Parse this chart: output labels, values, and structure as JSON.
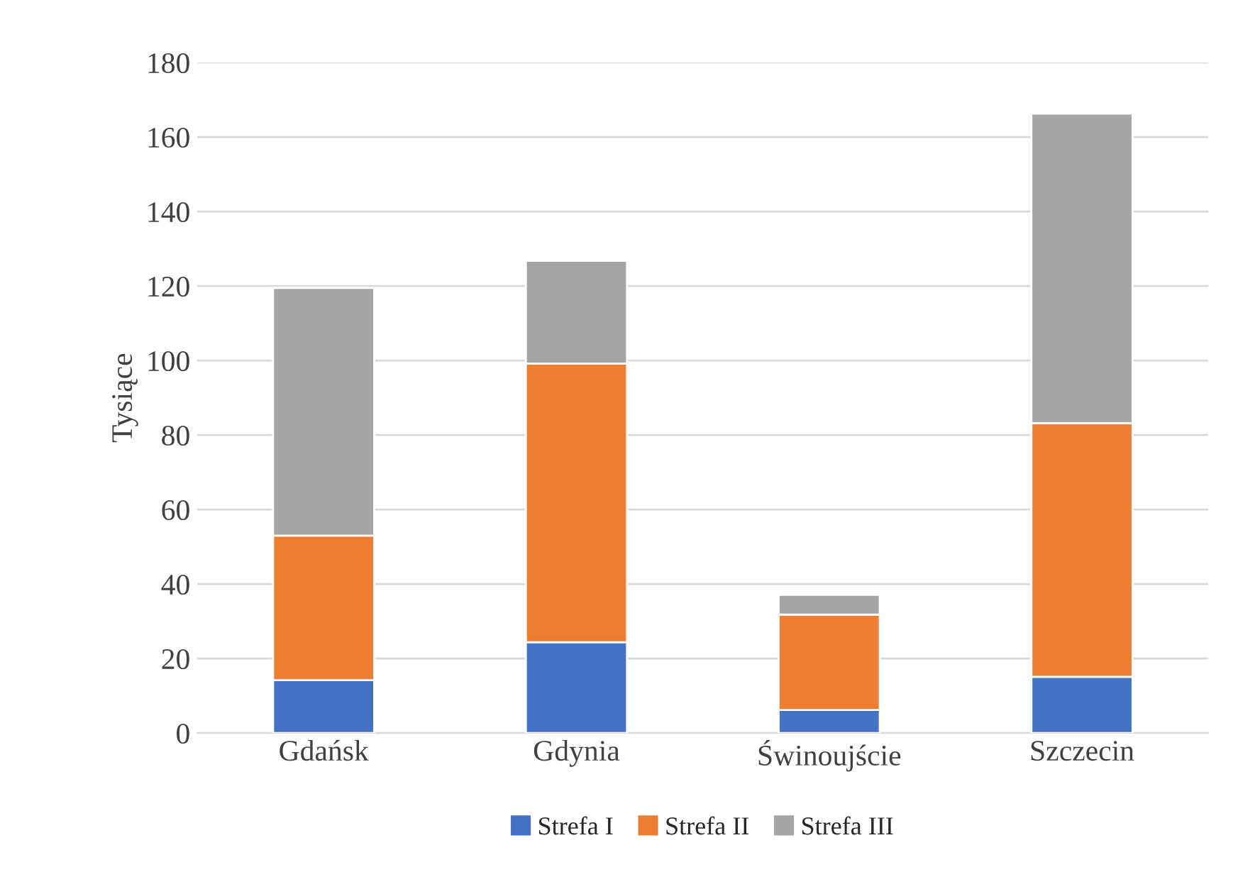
{
  "chart_data": {
    "type": "bar",
    "stacked": true,
    "ylabel": "Tysiące",
    "categories": [
      "Gdańsk",
      "Gdynia",
      "Świnoujście",
      "Szczecin"
    ],
    "series": [
      {
        "name": "Strefa I",
        "color": "#4472c4",
        "values": [
          14.2,
          24.4,
          6.2,
          15.1
        ]
      },
      {
        "name": "Strefa II",
        "color": "#ed7d31",
        "values": [
          38.8,
          74.8,
          25.6,
          68.1
        ]
      },
      {
        "name": "Strefa III",
        "color": "#a5a5a5",
        "values": [
          66.5,
          27.6,
          5.3,
          83.1
        ]
      }
    ],
    "ylim": [
      0,
      180
    ],
    "yticks": [
      0,
      20,
      40,
      60,
      80,
      100,
      120,
      140,
      160,
      180
    ],
    "grid": "y",
    "legend": "bottom"
  }
}
